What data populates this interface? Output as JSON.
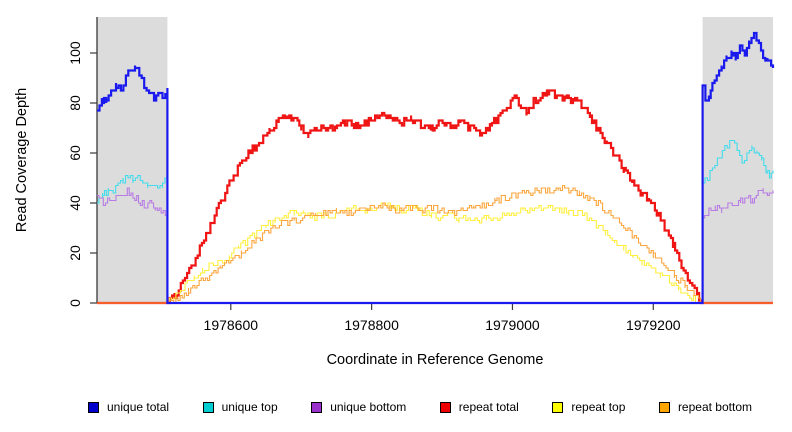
{
  "figure": {
    "xlabel": "Coordinate in Reference Genome",
    "ylabel": "Read Coverage Depth"
  },
  "chart_data": {
    "type": "line",
    "title": "",
    "xlabel": "Coordinate in Reference Genome",
    "ylabel": "Read Coverage Depth",
    "xlim": [
      1978410,
      1979370
    ],
    "ylim": [
      0,
      114.4
    ],
    "xticks": [
      1978600,
      1978800,
      1979000,
      1979200
    ],
    "yticks": [
      0,
      20,
      40,
      60,
      80,
      100
    ],
    "grid": false,
    "legend_position": "bottom",
    "axis_color": "#3a3a3a",
    "shaded_regions": {
      "color": "#dcdcdc",
      "ranges": [
        [
          1978410,
          1978510
        ],
        [
          1979270,
          1979370
        ]
      ]
    },
    "series": [
      {
        "name": "repeat total",
        "color": "#f01515",
        "legend_fill": "#ee0000",
        "linewidth": 2.2,
        "points": [
          [
            1978410,
            0
          ],
          [
            1978510,
            0
          ],
          [
            1978520,
            3
          ],
          [
            1978535,
            10
          ],
          [
            1978550,
            18
          ],
          [
            1978565,
            27
          ],
          [
            1978580,
            37
          ],
          [
            1978595,
            46
          ],
          [
            1978610,
            54
          ],
          [
            1978625,
            60
          ],
          [
            1978640,
            64
          ],
          [
            1978655,
            69
          ],
          [
            1978668,
            73
          ],
          [
            1978680,
            74
          ],
          [
            1978692,
            73
          ],
          [
            1978700,
            70
          ],
          [
            1978710,
            67
          ],
          [
            1978722,
            70
          ],
          [
            1978735,
            69
          ],
          [
            1978748,
            70
          ],
          [
            1978762,
            72
          ],
          [
            1978775,
            71
          ],
          [
            1978790,
            72
          ],
          [
            1978805,
            74
          ],
          [
            1978818,
            75
          ],
          [
            1978830,
            73
          ],
          [
            1978843,
            72
          ],
          [
            1978856,
            74
          ],
          [
            1978870,
            71
          ],
          [
            1978884,
            70
          ],
          [
            1978898,
            72
          ],
          [
            1978912,
            71
          ],
          [
            1978926,
            72
          ],
          [
            1978940,
            70
          ],
          [
            1978954,
            68
          ],
          [
            1978968,
            71
          ],
          [
            1978980,
            74
          ],
          [
            1978992,
            78
          ],
          [
            1979003,
            82
          ],
          [
            1979012,
            79
          ],
          [
            1979020,
            76
          ],
          [
            1979030,
            81
          ],
          [
            1979040,
            82
          ],
          [
            1979052,
            84
          ],
          [
            1979063,
            83
          ],
          [
            1979074,
            82
          ],
          [
            1979086,
            81
          ],
          [
            1979098,
            79
          ],
          [
            1979110,
            74
          ],
          [
            1979122,
            69
          ],
          [
            1979134,
            64
          ],
          [
            1979146,
            59
          ],
          [
            1979158,
            53
          ],
          [
            1979170,
            48
          ],
          [
            1979182,
            44
          ],
          [
            1979194,
            41
          ],
          [
            1979205,
            36
          ],
          [
            1979216,
            30
          ],
          [
            1979228,
            23
          ],
          [
            1979240,
            15
          ],
          [
            1979252,
            8
          ],
          [
            1979262,
            3
          ],
          [
            1979268,
            0
          ],
          [
            1979370,
            0
          ]
        ]
      },
      {
        "name": "repeat top",
        "color": "#ffef3d",
        "legend_fill": "#ffff00",
        "linewidth": 1.1,
        "points": [
          [
            1978410,
            0
          ],
          [
            1978510,
            0
          ],
          [
            1978522,
            3
          ],
          [
            1978535,
            7
          ],
          [
            1978548,
            10
          ],
          [
            1978560,
            13
          ],
          [
            1978572,
            15
          ],
          [
            1978585,
            16
          ],
          [
            1978598,
            19
          ],
          [
            1978611,
            22
          ],
          [
            1978624,
            25
          ],
          [
            1978637,
            28
          ],
          [
            1978650,
            31
          ],
          [
            1978663,
            33
          ],
          [
            1978676,
            35
          ],
          [
            1978690,
            36
          ],
          [
            1978703,
            36
          ],
          [
            1978716,
            34
          ],
          [
            1978729,
            35
          ],
          [
            1978742,
            34
          ],
          [
            1978755,
            36
          ],
          [
            1978768,
            37
          ],
          [
            1978781,
            38
          ],
          [
            1978794,
            37
          ],
          [
            1978807,
            38
          ],
          [
            1978820,
            39
          ],
          [
            1978833,
            38
          ],
          [
            1978846,
            37
          ],
          [
            1978859,
            38
          ],
          [
            1978872,
            36
          ],
          [
            1978885,
            35
          ],
          [
            1978898,
            34
          ],
          [
            1978911,
            35
          ],
          [
            1978924,
            33
          ],
          [
            1978937,
            34
          ],
          [
            1978950,
            33
          ],
          [
            1978963,
            34
          ],
          [
            1978976,
            33
          ],
          [
            1978989,
            35
          ],
          [
            1979002,
            36
          ],
          [
            1979015,
            37
          ],
          [
            1979028,
            37
          ],
          [
            1979041,
            38
          ],
          [
            1979054,
            38
          ],
          [
            1979067,
            37
          ],
          [
            1979080,
            36
          ],
          [
            1979093,
            36
          ],
          [
            1979106,
            34
          ],
          [
            1979119,
            31
          ],
          [
            1979132,
            28
          ],
          [
            1979145,
            25
          ],
          [
            1979158,
            22
          ],
          [
            1979171,
            19
          ],
          [
            1979184,
            16
          ],
          [
            1979197,
            13
          ],
          [
            1979210,
            11
          ],
          [
            1979223,
            9
          ],
          [
            1979236,
            6
          ],
          [
            1979249,
            3
          ],
          [
            1979260,
            1
          ],
          [
            1979266,
            0
          ],
          [
            1979370,
            0
          ]
        ]
      },
      {
        "name": "repeat bottom",
        "color": "#fca53c",
        "legend_fill": "#ffa500",
        "linewidth": 1.1,
        "points": [
          [
            1978410,
            0
          ],
          [
            1978510,
            0
          ],
          [
            1978525,
            2
          ],
          [
            1978540,
            5
          ],
          [
            1978555,
            8
          ],
          [
            1978570,
            11
          ],
          [
            1978585,
            14
          ],
          [
            1978600,
            17
          ],
          [
            1978615,
            20
          ],
          [
            1978630,
            24
          ],
          [
            1978645,
            27
          ],
          [
            1978660,
            30
          ],
          [
            1978675,
            32
          ],
          [
            1978690,
            33
          ],
          [
            1978705,
            34
          ],
          [
            1978720,
            35
          ],
          [
            1978735,
            36
          ],
          [
            1978750,
            37
          ],
          [
            1978765,
            36
          ],
          [
            1978780,
            37
          ],
          [
            1978795,
            38
          ],
          [
            1978810,
            39
          ],
          [
            1978825,
            38
          ],
          [
            1978840,
            37
          ],
          [
            1978855,
            38
          ],
          [
            1978870,
            37
          ],
          [
            1978885,
            38
          ],
          [
            1978900,
            37
          ],
          [
            1978915,
            36
          ],
          [
            1978930,
            37
          ],
          [
            1978945,
            38
          ],
          [
            1978960,
            39
          ],
          [
            1978975,
            41
          ],
          [
            1978990,
            42
          ],
          [
            1979005,
            43
          ],
          [
            1979020,
            44
          ],
          [
            1979035,
            45
          ],
          [
            1979050,
            45
          ],
          [
            1979065,
            46
          ],
          [
            1979080,
            45
          ],
          [
            1979095,
            44
          ],
          [
            1979110,
            42
          ],
          [
            1979125,
            39
          ],
          [
            1979140,
            35
          ],
          [
            1979155,
            31
          ],
          [
            1979170,
            27
          ],
          [
            1979185,
            23
          ],
          [
            1979200,
            19
          ],
          [
            1979215,
            15
          ],
          [
            1979230,
            11
          ],
          [
            1979245,
            7
          ],
          [
            1979258,
            3
          ],
          [
            1979270,
            0
          ],
          [
            1979370,
            0
          ]
        ]
      },
      {
        "name": "unique top",
        "color": "#42dcec",
        "legend_fill": "#00ced1",
        "linewidth": 1.1,
        "points": [
          [
            1978410,
            40
          ],
          [
            1978418,
            43
          ],
          [
            1978426,
            45
          ],
          [
            1978433,
            44
          ],
          [
            1978440,
            47
          ],
          [
            1978447,
            49
          ],
          [
            1978454,
            51
          ],
          [
            1978461,
            48
          ],
          [
            1978468,
            50
          ],
          [
            1978475,
            47
          ],
          [
            1978482,
            46
          ],
          [
            1978489,
            48
          ],
          [
            1978496,
            45
          ],
          [
            1978503,
            47
          ],
          [
            1978510,
            51
          ],
          [
            1978510,
            0
          ],
          [
            1979270,
            0
          ],
          [
            1979270,
            47
          ],
          [
            1979277,
            50
          ],
          [
            1979284,
            53
          ],
          [
            1979291,
            57
          ],
          [
            1979298,
            60
          ],
          [
            1979305,
            63
          ],
          [
            1979312,
            65
          ],
          [
            1979319,
            61
          ],
          [
            1979326,
            57
          ],
          [
            1979333,
            59
          ],
          [
            1979340,
            62
          ],
          [
            1979347,
            60
          ],
          [
            1979354,
            57
          ],
          [
            1979360,
            53
          ],
          [
            1979365,
            50
          ],
          [
            1979370,
            53
          ]
        ]
      },
      {
        "name": "unique bottom",
        "color": "#b77ce4",
        "legend_fill": "#9932cc",
        "linewidth": 1.1,
        "points": [
          [
            1978410,
            42
          ],
          [
            1978419,
            40
          ],
          [
            1978428,
            41
          ],
          [
            1978437,
            43
          ],
          [
            1978445,
            42
          ],
          [
            1978453,
            45
          ],
          [
            1978461,
            43
          ],
          [
            1978469,
            41
          ],
          [
            1978477,
            39
          ],
          [
            1978485,
            40
          ],
          [
            1978493,
            38
          ],
          [
            1978501,
            36
          ],
          [
            1978510,
            35
          ],
          [
            1978510,
            0
          ],
          [
            1979270,
            0
          ],
          [
            1979270,
            35
          ],
          [
            1979279,
            37
          ],
          [
            1979288,
            38
          ],
          [
            1979297,
            37
          ],
          [
            1979306,
            39
          ],
          [
            1979315,
            40
          ],
          [
            1979324,
            41
          ],
          [
            1979333,
            42
          ],
          [
            1979341,
            41
          ],
          [
            1979349,
            44
          ],
          [
            1979356,
            45
          ],
          [
            1979362,
            43
          ],
          [
            1979370,
            44
          ]
        ]
      },
      {
        "name": "unique total",
        "color": "#1a1aee",
        "legend_fill": "#0000cc",
        "linewidth": 2.2,
        "points": [
          [
            1978410,
            78
          ],
          [
            1978417,
            81
          ],
          [
            1978423,
            80
          ],
          [
            1978430,
            84
          ],
          [
            1978437,
            87
          ],
          [
            1978444,
            86
          ],
          [
            1978451,
            90
          ],
          [
            1978458,
            93
          ],
          [
            1978464,
            95
          ],
          [
            1978470,
            91
          ],
          [
            1978477,
            87
          ],
          [
            1978484,
            84
          ],
          [
            1978491,
            82
          ],
          [
            1978497,
            84
          ],
          [
            1978503,
            81
          ],
          [
            1978507,
            83
          ],
          [
            1978510,
            86
          ],
          [
            1978510,
            0
          ],
          [
            1979270,
            0
          ],
          [
            1979270,
            86
          ],
          [
            1979274,
            80
          ],
          [
            1979279,
            83
          ],
          [
            1979284,
            87
          ],
          [
            1979290,
            90
          ],
          [
            1979297,
            94
          ],
          [
            1979304,
            98
          ],
          [
            1979311,
            100
          ],
          [
            1979317,
            97
          ],
          [
            1979323,
            102
          ],
          [
            1979330,
            100
          ],
          [
            1979336,
            104
          ],
          [
            1979343,
            107
          ],
          [
            1979350,
            103
          ],
          [
            1979356,
            99
          ],
          [
            1979362,
            97
          ],
          [
            1979370,
            95
          ]
        ]
      }
    ],
    "legend_order": [
      "unique total",
      "unique top",
      "unique bottom",
      "repeat total",
      "repeat top",
      "repeat bottom"
    ]
  }
}
